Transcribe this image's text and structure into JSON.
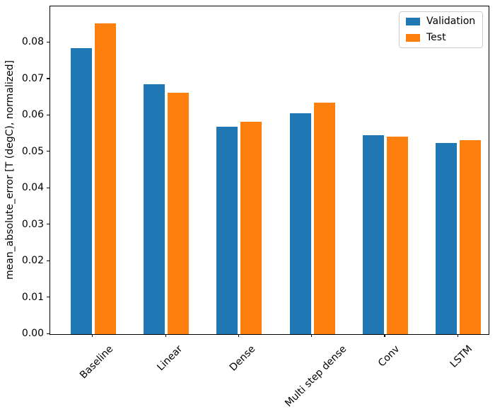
{
  "chart_data": {
    "type": "bar",
    "title": "",
    "xlabel": "",
    "ylabel": "mean_absolute_error [T (degC), normalized]",
    "categories": [
      "Baseline",
      "Linear",
      "Dense",
      "Multi step dense",
      "Conv",
      "LSTM"
    ],
    "series": [
      {
        "name": "Validation",
        "color": "#1f77b4",
        "values": [
          0.0785,
          0.0686,
          0.057,
          0.0607,
          0.0546,
          0.0524
        ]
      },
      {
        "name": "Test",
        "color": "#ff7f0e",
        "values": [
          0.0853,
          0.0662,
          0.0583,
          0.0635,
          0.0543,
          0.0532
        ]
      }
    ],
    "ylim": [
      0,
      0.09
    ],
    "yticks": [
      {
        "value": 0.0,
        "label": "0.00"
      },
      {
        "value": 0.01,
        "label": "0.01"
      },
      {
        "value": 0.02,
        "label": "0.02"
      },
      {
        "value": 0.03,
        "label": "0.03"
      },
      {
        "value": 0.04,
        "label": "0.04"
      },
      {
        "value": 0.05,
        "label": "0.05"
      },
      {
        "value": 0.06,
        "label": "0.06"
      },
      {
        "value": 0.07,
        "label": "0.07"
      },
      {
        "value": 0.08,
        "label": "0.08"
      },
      {
        "value": 0.09,
        "label": ""
      }
    ],
    "xtick_rotation": 45,
    "grid": false,
    "legend": {
      "position": "upper right",
      "entries": [
        "Validation",
        "Test"
      ]
    }
  }
}
